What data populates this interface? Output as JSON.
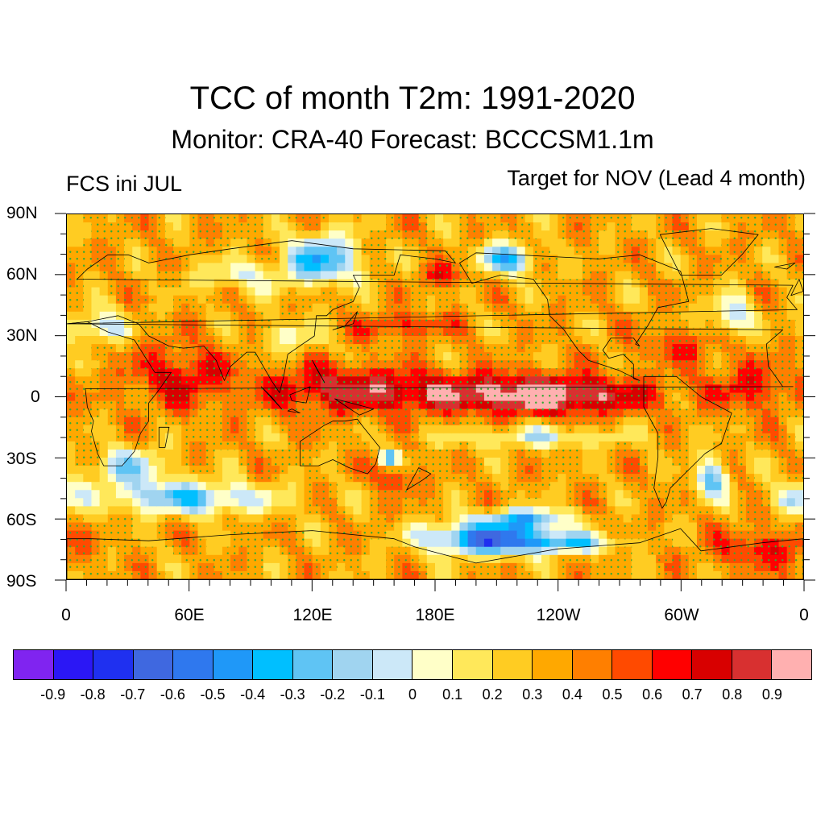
{
  "title": "TCC of month T2m: 1991-2020",
  "subtitle": "Monitor: CRA-40   Forecast: BCCCSM1.1m",
  "left_label": "FCS ini JUL",
  "right_label": "Target for NOV (Lead 4 month)",
  "lat_labels": [
    "90N",
    "60N",
    "30N",
    "0",
    "30S",
    "60S",
    "90S"
  ],
  "lon_labels": [
    "0",
    "60E",
    "120E",
    "180E",
    "120W",
    "60W",
    "0"
  ],
  "colorbar": {
    "colors": [
      "#8024f0",
      "#2b17f5",
      "#1f30f0",
      "#3f68e0",
      "#2f78ee",
      "#1f98f8",
      "#00bfff",
      "#5fc4f4",
      "#a0d4f0",
      "#cce8f8",
      "#ffffc8",
      "#ffe85a",
      "#ffcc22",
      "#ffa800",
      "#ff7f00",
      "#ff4a00",
      "#ff0000",
      "#d80000",
      "#d83030",
      "#ffb0b0"
    ],
    "labels": [
      "-0.9",
      "-0.8",
      "-0.7",
      "-0.6",
      "-0.5",
      "-0.4",
      "-0.3",
      "-0.2",
      "-0.1",
      "0",
      "0.1",
      "0.2",
      "0.3",
      "0.4",
      "0.5",
      "0.6",
      "0.7",
      "0.8",
      "0.9"
    ]
  },
  "map": {
    "projection": "cylindrical-equidistant",
    "lon_range": [
      0,
      360
    ],
    "lat_range": [
      -90,
      90
    ],
    "stipple_color": "#33aa33",
    "base_value": 0.35,
    "anomalies": [
      {
        "lon": 200,
        "lat": 2,
        "rlon": 75,
        "rlat": 10,
        "value": 0.45
      },
      {
        "lon": 240,
        "lat": 0,
        "rlon": 40,
        "rlat": 8,
        "value": 0.4
      },
      {
        "lon": 130,
        "lat": 5,
        "rlon": 35,
        "rlat": 12,
        "value": 0.3
      },
      {
        "lon": 55,
        "lat": 10,
        "rlon": 25,
        "rlat": 15,
        "value": 0.35
      },
      {
        "lon": 165,
        "lat": 35,
        "rlon": 22,
        "rlat": 6,
        "value": 0.3
      },
      {
        "lon": 335,
        "lat": 5,
        "rlon": 20,
        "rlat": 12,
        "value": 0.3
      },
      {
        "lon": 300,
        "lat": 25,
        "rlon": 20,
        "rlat": 8,
        "value": 0.25
      },
      {
        "lon": 185,
        "lat": 60,
        "rlon": 12,
        "rlat": 6,
        "value": 0.3
      },
      {
        "lon": 160,
        "lat": -40,
        "rlon": 8,
        "rlat": 6,
        "value": 0.35
      },
      {
        "lon": 340,
        "lat": -75,
        "rlon": 25,
        "rlat": 10,
        "value": 0.3
      },
      {
        "lon": 205,
        "lat": -70,
        "rlon": 30,
        "rlat": 8,
        "value": -0.95
      },
      {
        "lon": 225,
        "lat": -60,
        "rlon": 20,
        "rlat": 5,
        "value": -0.6
      },
      {
        "lon": 60,
        "lat": -50,
        "rlon": 40,
        "rlat": 8,
        "value": -0.6
      },
      {
        "lon": 245,
        "lat": -72,
        "rlon": 25,
        "rlat": 5,
        "value": -0.5
      },
      {
        "lon": 125,
        "lat": 68,
        "rlon": 18,
        "rlat": 12,
        "value": -0.7
      },
      {
        "lon": 215,
        "lat": 68,
        "rlon": 15,
        "rlat": 8,
        "value": -0.6
      },
      {
        "lon": 325,
        "lat": 40,
        "rlon": 10,
        "rlat": 10,
        "value": -0.45
      },
      {
        "lon": 15,
        "lat": 35,
        "rlon": 15,
        "rlat": 8,
        "value": -0.45
      },
      {
        "lon": 30,
        "lat": -35,
        "rlon": 20,
        "rlat": 10,
        "value": -0.45
      },
      {
        "lon": 315,
        "lat": -40,
        "rlon": 8,
        "rlat": 10,
        "value": -0.6
      },
      {
        "lon": 158,
        "lat": -30,
        "rlon": 5,
        "rlat": 4,
        "value": -0.6
      },
      {
        "lon": 230,
        "lat": -20,
        "rlon": 45,
        "rlat": 5,
        "value": -0.35
      },
      {
        "lon": 110,
        "lat": 30,
        "rlon": 15,
        "rlat": 8,
        "value": -0.3
      },
      {
        "lon": 85,
        "lat": 60,
        "rlon": 25,
        "rlat": 8,
        "value": -0.3
      },
      {
        "lon": 355,
        "lat": -50,
        "rlon": 10,
        "rlat": 8,
        "value": -0.4
      }
    ],
    "land": [
      [
        [
          12,
          -70
        ],
        [
          40,
          -71
        ],
        [
          80,
          -68
        ],
        [
          120,
          -66
        ],
        [
          160,
          -70
        ],
        [
          170,
          -74
        ],
        [
          200,
          -82
        ],
        [
          240,
          -75
        ],
        [
          280,
          -72
        ],
        [
          300,
          -65
        ],
        [
          310,
          -76
        ],
        [
          340,
          -72
        ],
        [
          360,
          -70
        ],
        [
          360,
          -90
        ],
        [
          0,
          -90
        ],
        [
          0,
          -70
        ]
      ],
      [
        [
          343,
          15
        ],
        [
          350,
          5
        ],
        [
          355,
          5
        ],
        [
          9,
          4
        ],
        [
          10,
          -5
        ],
        [
          13,
          -12
        ],
        [
          12,
          -17
        ],
        [
          15,
          -28
        ],
        [
          18,
          -34
        ],
        [
          27,
          -34
        ],
        [
          33,
          -27
        ],
        [
          36,
          -18
        ],
        [
          40,
          -12
        ],
        [
          40,
          -3
        ],
        [
          44,
          2
        ],
        [
          51,
          12
        ],
        [
          43,
          12
        ],
        [
          33,
          28
        ],
        [
          20,
          32
        ],
        [
          10,
          37
        ],
        [
          0,
          36
        ],
        [
          350,
          33
        ],
        [
          342,
          26
        ],
        [
          343,
          15
        ]
      ],
      [
        [
          0,
          36
        ],
        [
          10,
          37
        ],
        [
          25,
          40
        ],
        [
          35,
          36
        ],
        [
          40,
          30
        ],
        [
          50,
          25
        ],
        [
          57,
          24
        ],
        [
          67,
          25
        ],
        [
          73,
          18
        ],
        [
          77,
          8
        ],
        [
          80,
          15
        ],
        [
          88,
          22
        ],
        [
          92,
          22
        ],
        [
          100,
          8
        ],
        [
          104,
          2
        ],
        [
          106,
          10
        ],
        [
          108,
          21
        ],
        [
          121,
          30
        ],
        [
          122,
          40
        ],
        [
          127,
          40
        ],
        [
          130,
          43
        ],
        [
          140,
          47
        ],
        [
          143,
          54
        ],
        [
          140,
          60
        ],
        [
          160,
          60
        ],
        [
          163,
          70
        ],
        [
          180,
          68
        ],
        [
          190,
          66
        ],
        [
          185,
          72
        ],
        [
          140,
          73
        ],
        [
          110,
          77
        ],
        [
          80,
          73
        ],
        [
          60,
          70
        ],
        [
          40,
          66
        ],
        [
          30,
          70
        ],
        [
          20,
          70
        ],
        [
          10,
          63
        ],
        [
          5,
          58
        ],
        [
          355,
          55
        ],
        [
          352,
          49
        ],
        [
          357,
          43
        ],
        [
          0,
          36
        ]
      ],
      [
        [
          114,
          -22
        ],
        [
          114,
          -34
        ],
        [
          123,
          -34
        ],
        [
          130,
          -31
        ],
        [
          138,
          -35
        ],
        [
          147,
          -38
        ],
        [
          151,
          -33
        ],
        [
          153,
          -25
        ],
        [
          145,
          -15
        ],
        [
          142,
          -11
        ],
        [
          136,
          -12
        ],
        [
          130,
          -12
        ],
        [
          126,
          -14
        ],
        [
          114,
          -22
        ]
      ],
      [
        [
          192,
          66
        ],
        [
          200,
          71
        ],
        [
          220,
          70
        ],
        [
          240,
          69
        ],
        [
          260,
          68
        ],
        [
          280,
          70
        ],
        [
          300,
          62
        ],
        [
          304,
          47
        ],
        [
          289,
          44
        ],
        [
          284,
          35
        ],
        [
          278,
          26
        ],
        [
          280,
          25
        ],
        [
          277,
          29
        ],
        [
          266,
          29
        ],
        [
          262,
          23
        ],
        [
          265,
          19
        ],
        [
          272,
          21
        ],
        [
          277,
          16
        ],
        [
          277,
          9
        ],
        [
          280,
          8
        ],
        [
          270,
          13
        ],
        [
          255,
          18
        ],
        [
          250,
          23
        ],
        [
          243,
          33
        ],
        [
          236,
          40
        ],
        [
          235,
          48
        ],
        [
          228,
          58
        ],
        [
          212,
          60
        ],
        [
          198,
          56
        ],
        [
          192,
          66
        ]
      ],
      [
        [
          282,
          10
        ],
        [
          282,
          -5
        ],
        [
          289,
          -18
        ],
        [
          289,
          -30
        ],
        [
          287,
          -45
        ],
        [
          291,
          -55
        ],
        [
          293,
          -52
        ],
        [
          295,
          -45
        ],
        [
          302,
          -38
        ],
        [
          312,
          -28
        ],
        [
          320,
          -23
        ],
        [
          325,
          -8
        ],
        [
          310,
          0
        ],
        [
          298,
          10
        ],
        [
          282,
          10
        ]
      ],
      [
        [
          300,
          60
        ],
        [
          320,
          60
        ],
        [
          330,
          70
        ],
        [
          338,
          80
        ],
        [
          315,
          83
        ],
        [
          290,
          80
        ],
        [
          300,
          60
        ]
      ],
      [
        [
          95,
          5
        ],
        [
          105,
          -6
        ],
        [
          100,
          0
        ],
        [
          95,
          5
        ]
      ],
      [
        [
          108,
          -7
        ],
        [
          114,
          -8
        ],
        [
          110,
          -6
        ],
        [
          108,
          -7
        ]
      ],
      [
        [
          109,
          1
        ],
        [
          119,
          5
        ],
        [
          117,
          -3
        ],
        [
          110,
          -2
        ],
        [
          109,
          1
        ]
      ],
      [
        [
          131,
          -1
        ],
        [
          150,
          -6
        ],
        [
          143,
          -9
        ],
        [
          131,
          -1
        ]
      ],
      [
        [
          130,
          33
        ],
        [
          140,
          36
        ],
        [
          142,
          42
        ],
        [
          136,
          35
        ],
        [
          130,
          33
        ]
      ],
      [
        [
          120,
          18
        ],
        [
          126,
          7
        ],
        [
          122,
          14
        ],
        [
          120,
          18
        ]
      ],
      [
        [
          166,
          -46
        ],
        [
          174,
          -41
        ],
        [
          178,
          -38
        ],
        [
          172,
          -35
        ],
        [
          166,
          -46
        ]
      ],
      [
        [
          45,
          -15
        ],
        [
          50,
          -15
        ],
        [
          48,
          -25
        ],
        [
          45,
          -25
        ],
        [
          45,
          -15
        ]
      ],
      [
        [
          354,
          50
        ],
        [
          358,
          58
        ],
        [
          360,
          52
        ],
        [
          354,
          50
        ]
      ],
      [
        [
          346,
          64
        ],
        [
          356,
          66
        ],
        [
          352,
          63
        ],
        [
          346,
          64
        ]
      ]
    ]
  }
}
